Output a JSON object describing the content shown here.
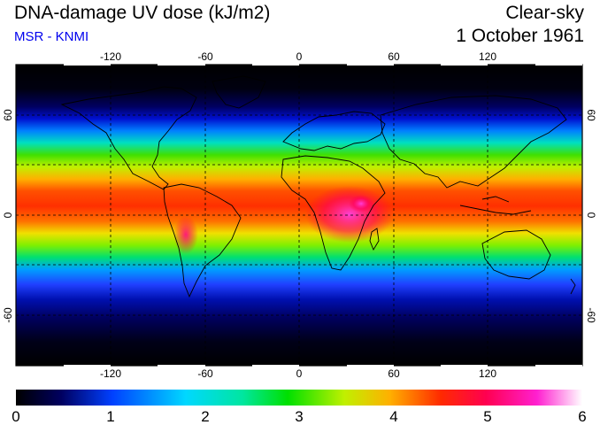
{
  "header": {
    "title": "DNA-damage UV dose (kJ/m2)",
    "subtitle": "MSR - KNMI",
    "condition": "Clear-sky",
    "date": "1 October 1961"
  },
  "map": {
    "projection": "equirectangular",
    "lon_range": [
      -180,
      180
    ],
    "lat_range": [
      -90,
      90
    ],
    "lon_ticks": [
      "-120",
      "-60",
      "0",
      "60",
      "120"
    ],
    "lat_ticks": [
      "60",
      "0",
      "-60"
    ],
    "grid_spacing_deg": 30,
    "gridlines": "dashed"
  },
  "colorbar": {
    "min": 0,
    "max": 6,
    "tick_labels": [
      "0",
      "1",
      "2",
      "3",
      "4",
      "5",
      "6"
    ],
    "colors": [
      "#000000",
      "#000080",
      "#0044ff",
      "#00d0ff",
      "#00e6a0",
      "#00e000",
      "#80f000",
      "#f0f000",
      "#ff9a00",
      "#ff2a00",
      "#ff0050",
      "#ff20d0",
      "#ffffff"
    ]
  }
}
